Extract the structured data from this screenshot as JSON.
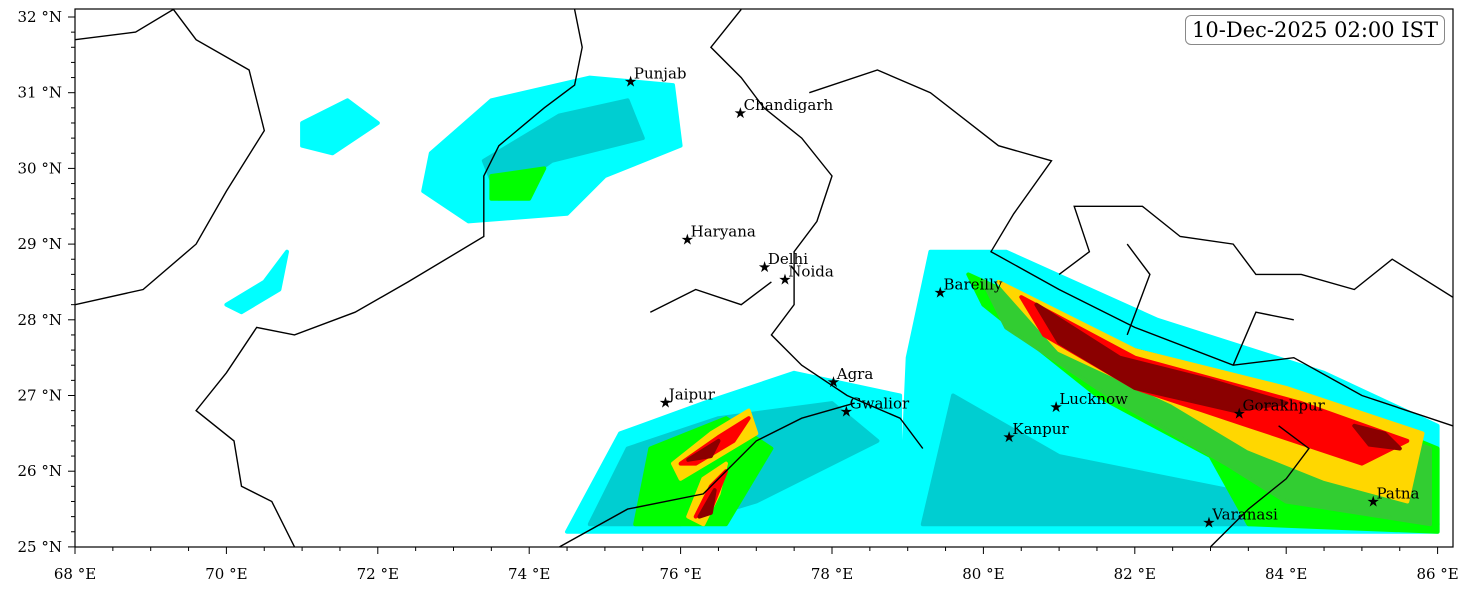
{
  "title_box": "10-Dec-2025 02:00 IST",
  "map": {
    "lon_range": [
      68,
      86.2
    ],
    "lat_range": [
      25,
      32.1
    ],
    "x_ticks": [
      {
        "v": 68,
        "label": "68 °E"
      },
      {
        "v": 70,
        "label": "70 °E"
      },
      {
        "v": 72,
        "label": "72 °E"
      },
      {
        "v": 74,
        "label": "74 °E"
      },
      {
        "v": 76,
        "label": "76 °E"
      },
      {
        "v": 78,
        "label": "78 °E"
      },
      {
        "v": 80,
        "label": "80 °E"
      },
      {
        "v": 82,
        "label": "82 °E"
      },
      {
        "v": 84,
        "label": "84 °E"
      },
      {
        "v": 86,
        "label": "86 °E"
      }
    ],
    "y_ticks": [
      {
        "v": 25,
        "label": "25 °N"
      },
      {
        "v": 26,
        "label": "26 °N"
      },
      {
        "v": 27,
        "label": "27 °N"
      },
      {
        "v": 28,
        "label": "28 °N"
      },
      {
        "v": 29,
        "label": "29 °N"
      },
      {
        "v": 30,
        "label": "30 °N"
      },
      {
        "v": 31,
        "label": "31 °N"
      },
      {
        "v": 32,
        "label": "32 °N"
      }
    ],
    "colors": [
      "#00ffff",
      "#00ced1",
      "#00ff00",
      "#32cd32",
      "#ffd700",
      "#ff0000",
      "#8b0000"
    ],
    "cities": [
      {
        "name": "Punjab",
        "lon": 75.33,
        "lat": 31.15
      },
      {
        "name": "Chandigarh",
        "lon": 76.78,
        "lat": 30.73
      },
      {
        "name": "Haryana",
        "lon": 76.08,
        "lat": 29.06
      },
      {
        "name": "Delhi",
        "lon": 77.1,
        "lat": 28.7
      },
      {
        "name": "Noida",
        "lon": 77.37,
        "lat": 28.53
      },
      {
        "name": "Bareilly",
        "lon": 79.42,
        "lat": 28.36
      },
      {
        "name": "Agra",
        "lon": 78.01,
        "lat": 27.18
      },
      {
        "name": "Jaipur",
        "lon": 75.79,
        "lat": 26.91
      },
      {
        "name": "Gwalior",
        "lon": 78.18,
        "lat": 26.79
      },
      {
        "name": "Lucknow",
        "lon": 80.95,
        "lat": 26.85
      },
      {
        "name": "Kanpur",
        "lon": 80.33,
        "lat": 26.45
      },
      {
        "name": "Gorakhpur",
        "lon": 83.37,
        "lat": 26.76
      },
      {
        "name": "Varanasi",
        "lon": 82.97,
        "lat": 25.32
      },
      {
        "name": "Patna",
        "lon": 85.14,
        "lat": 25.6
      }
    ],
    "precip_regions": [
      {
        "level": 0,
        "pts": [
          [
            72.7,
            30.2
          ],
          [
            73.5,
            30.9
          ],
          [
            74.8,
            31.2
          ],
          [
            75.9,
            31.1
          ],
          [
            76.0,
            30.3
          ],
          [
            75.0,
            29.9
          ],
          [
            74.5,
            29.4
          ],
          [
            73.2,
            29.3
          ],
          [
            72.6,
            29.7
          ]
        ]
      },
      {
        "level": 0,
        "pts": [
          [
            71.0,
            30.6
          ],
          [
            71.6,
            30.9
          ],
          [
            72.0,
            30.6
          ],
          [
            71.4,
            30.2
          ],
          [
            71.0,
            30.3
          ]
        ]
      },
      {
        "level": 0,
        "pts": [
          [
            70.0,
            28.2
          ],
          [
            70.5,
            28.5
          ],
          [
            70.8,
            28.9
          ],
          [
            70.7,
            28.4
          ],
          [
            70.2,
            28.1
          ]
        ]
      },
      {
        "level": 0,
        "pts": [
          [
            79.3,
            28.9
          ],
          [
            80.3,
            28.9
          ],
          [
            82.3,
            28.0
          ],
          [
            84.5,
            27.3
          ],
          [
            86.0,
            26.6
          ],
          [
            86.0,
            25.2
          ],
          [
            78.9,
            25.2
          ],
          [
            78.9,
            27.0
          ],
          [
            77.5,
            27.3
          ],
          [
            76.3,
            26.9
          ],
          [
            75.2,
            26.5
          ],
          [
            74.5,
            25.2
          ],
          [
            78.9,
            25.2
          ],
          [
            79.0,
            27.5
          ]
        ]
      },
      {
        "level": 1,
        "pts": [
          [
            73.4,
            30.1
          ],
          [
            74.4,
            30.7
          ],
          [
            75.3,
            30.9
          ],
          [
            75.5,
            30.4
          ],
          [
            74.3,
            30.1
          ],
          [
            73.6,
            29.6
          ]
        ]
      },
      {
        "level": 1,
        "pts": [
          [
            79.6,
            27.0
          ],
          [
            81.0,
            26.2
          ],
          [
            82.5,
            25.9
          ],
          [
            84.0,
            25.6
          ],
          [
            86.0,
            25.3
          ],
          [
            79.2,
            25.3
          ]
        ]
      },
      {
        "level": 1,
        "pts": [
          [
            74.8,
            25.3
          ],
          [
            75.3,
            26.3
          ],
          [
            76.5,
            26.7
          ],
          [
            78.0,
            26.9
          ],
          [
            78.6,
            26.4
          ],
          [
            77.0,
            25.6
          ],
          [
            76.0,
            25.3
          ]
        ]
      },
      {
        "level": 2,
        "pts": [
          [
            79.8,
            28.6
          ],
          [
            82.0,
            27.6
          ],
          [
            84.3,
            27.0
          ],
          [
            86.0,
            26.3
          ],
          [
            86.0,
            25.2
          ],
          [
            83.5,
            25.3
          ],
          [
            83.0,
            26.2
          ],
          [
            81.5,
            27.0
          ],
          [
            80.0,
            28.2
          ]
        ]
      },
      {
        "level": 2,
        "pts": [
          [
            75.4,
            25.3
          ],
          [
            75.6,
            26.3
          ],
          [
            76.6,
            26.7
          ],
          [
            77.2,
            26.3
          ],
          [
            76.6,
            25.3
          ]
        ]
      },
      {
        "level": 2,
        "pts": [
          [
            73.5,
            29.9
          ],
          [
            74.2,
            30.0
          ],
          [
            74.0,
            29.6
          ],
          [
            73.5,
            29.6
          ]
        ]
      },
      {
        "level": 3,
        "pts": [
          [
            80.0,
            28.5
          ],
          [
            82.0,
            27.5
          ],
          [
            84.0,
            27.0
          ],
          [
            85.9,
            26.3
          ],
          [
            85.9,
            25.3
          ],
          [
            84.0,
            25.6
          ],
          [
            83.2,
            26.1
          ],
          [
            81.8,
            26.9
          ],
          [
            80.3,
            27.9
          ]
        ]
      },
      {
        "level": 4,
        "pts": [
          [
            80.2,
            28.5
          ],
          [
            82.0,
            27.6
          ],
          [
            84.0,
            27.1
          ],
          [
            85.8,
            26.5
          ],
          [
            85.6,
            25.6
          ],
          [
            84.5,
            25.9
          ],
          [
            83.5,
            26.3
          ],
          [
            82.5,
            26.9
          ],
          [
            81.0,
            27.6
          ]
        ]
      },
      {
        "level": 4,
        "pts": [
          [
            76.1,
            25.4
          ],
          [
            76.3,
            25.9
          ],
          [
            76.6,
            26.1
          ],
          [
            76.5,
            25.7
          ],
          [
            76.3,
            25.3
          ]
        ]
      },
      {
        "level": 4,
        "pts": [
          [
            75.9,
            26.1
          ],
          [
            76.4,
            26.5
          ],
          [
            76.9,
            26.8
          ],
          [
            77.0,
            26.5
          ],
          [
            76.5,
            26.2
          ],
          [
            76.0,
            25.9
          ]
        ]
      },
      {
        "level": 5,
        "pts": [
          [
            80.5,
            28.3
          ],
          [
            82.0,
            27.5
          ],
          [
            84.2,
            26.9
          ],
          [
            85.6,
            26.4
          ],
          [
            85.0,
            26.1
          ],
          [
            83.5,
            26.6
          ],
          [
            82.0,
            27.1
          ],
          [
            80.8,
            27.8
          ]
        ]
      },
      {
        "level": 5,
        "pts": [
          [
            76.0,
            26.1
          ],
          [
            76.5,
            26.45
          ],
          [
            76.9,
            26.7
          ],
          [
            76.7,
            26.4
          ],
          [
            76.2,
            26.1
          ]
        ]
      },
      {
        "level": 5,
        "pts": [
          [
            76.2,
            25.4
          ],
          [
            76.4,
            25.8
          ],
          [
            76.6,
            26.0
          ],
          [
            76.4,
            25.5
          ]
        ]
      },
      {
        "level": 6,
        "pts": [
          [
            80.7,
            28.2
          ],
          [
            81.8,
            27.5
          ],
          [
            83.0,
            27.2
          ],
          [
            84.0,
            26.9
          ],
          [
            83.3,
            26.8
          ],
          [
            82.0,
            27.1
          ],
          [
            81.0,
            27.7
          ]
        ]
      },
      {
        "level": 6,
        "pts": [
          [
            84.9,
            26.6
          ],
          [
            85.3,
            26.5
          ],
          [
            85.5,
            26.3
          ],
          [
            85.1,
            26.35
          ]
        ]
      },
      {
        "level": 6,
        "pts": [
          [
            76.1,
            26.15
          ],
          [
            76.5,
            26.4
          ],
          [
            76.4,
            26.2
          ]
        ]
      },
      {
        "level": 6,
        "pts": [
          [
            76.25,
            25.4
          ],
          [
            76.45,
            25.75
          ],
          [
            76.4,
            25.45
          ]
        ]
      }
    ],
    "borders": [
      [
        [
          69.3,
          32.1
        ],
        [
          69.6,
          31.7
        ],
        [
          70.3,
          31.3
        ],
        [
          70.5,
          30.5
        ],
        [
          70.0,
          29.7
        ],
        [
          69.6,
          29.0
        ],
        [
          68.9,
          28.4
        ],
        [
          68.0,
          28.2
        ]
      ],
      [
        [
          74.6,
          32.1
        ],
        [
          74.7,
          31.6
        ],
        [
          74.6,
          31.1
        ],
        [
          74.2,
          30.8
        ],
        [
          73.6,
          30.3
        ],
        [
          73.4,
          29.9
        ],
        [
          73.4,
          29.1
        ],
        [
          72.4,
          28.5
        ],
        [
          71.7,
          28.1
        ],
        [
          70.9,
          27.8
        ],
        [
          70.4,
          27.9
        ],
        [
          70.0,
          27.3
        ],
        [
          69.6,
          26.8
        ],
        [
          70.1,
          26.4
        ],
        [
          70.2,
          25.8
        ],
        [
          70.6,
          25.6
        ],
        [
          70.9,
          25.0
        ]
      ],
      [
        [
          76.8,
          32.1
        ],
        [
          76.4,
          31.6
        ],
        [
          76.8,
          31.2
        ],
        [
          77.1,
          30.8
        ],
        [
          77.6,
          30.4
        ],
        [
          78.0,
          29.9
        ],
        [
          77.8,
          29.3
        ],
        [
          77.5,
          28.9
        ],
        [
          77.5,
          28.2
        ],
        [
          77.2,
          27.8
        ],
        [
          77.6,
          27.4
        ],
        [
          78.2,
          27.0
        ],
        [
          78.9,
          26.7
        ],
        [
          79.2,
          26.3
        ]
      ],
      [
        [
          77.7,
          31.0
        ],
        [
          78.6,
          31.3
        ],
        [
          79.3,
          31.0
        ],
        [
          80.2,
          30.3
        ],
        [
          80.9,
          30.1
        ],
        [
          80.4,
          29.4
        ],
        [
          80.1,
          28.9
        ],
        [
          81.0,
          28.4
        ],
        [
          82.0,
          27.9
        ],
        [
          83.3,
          27.4
        ],
        [
          84.1,
          27.5
        ],
        [
          85.0,
          27.0
        ],
        [
          86.2,
          26.6
        ]
      ],
      [
        [
          75.6,
          28.1
        ],
        [
          76.2,
          28.4
        ],
        [
          76.8,
          28.2
        ],
        [
          77.2,
          28.5
        ]
      ],
      [
        [
          74.4,
          25.0
        ],
        [
          75.3,
          25.5
        ],
        [
          76.3,
          25.7
        ],
        [
          77.0,
          26.4
        ],
        [
          77.6,
          26.7
        ],
        [
          78.3,
          26.9
        ]
      ],
      [
        [
          83.0,
          25.0
        ],
        [
          83.5,
          25.5
        ],
        [
          84.0,
          25.9
        ],
        [
          84.3,
          26.3
        ],
        [
          83.9,
          26.6
        ]
      ],
      [
        [
          81.0,
          28.6
        ],
        [
          81.4,
          28.9
        ],
        [
          81.2,
          29.5
        ],
        [
          82.1,
          29.5
        ],
        [
          82.6,
          29.1
        ],
        [
          83.3,
          29.0
        ],
        [
          83.6,
          28.6
        ],
        [
          84.2,
          28.6
        ],
        [
          84.9,
          28.4
        ],
        [
          85.4,
          28.8
        ],
        [
          86.2,
          28.3
        ]
      ],
      [
        [
          81.9,
          27.8
        ],
        [
          82.2,
          28.6
        ],
        [
          81.9,
          29.0
        ]
      ],
      [
        [
          83.3,
          27.4
        ],
        [
          83.6,
          28.1
        ],
        [
          84.1,
          28.0
        ]
      ],
      [
        [
          68.0,
          31.7
        ],
        [
          68.8,
          31.8
        ],
        [
          69.3,
          32.1
        ]
      ]
    ]
  }
}
